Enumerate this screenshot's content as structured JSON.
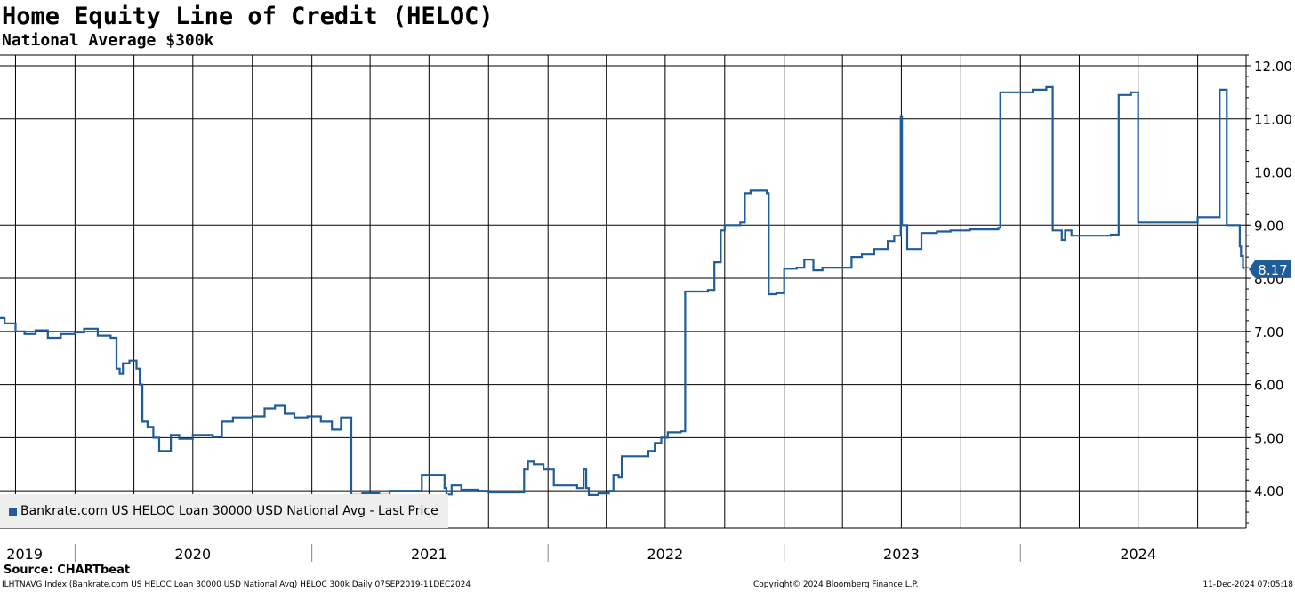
{
  "title": "Home Equity Line of Credit (HELOC)",
  "subtitle": "National Average $300k",
  "source": "Source: CHARTbeat",
  "footer": {
    "left": "ILHTNAVG Index (Bankrate.com US HELOC Loan 30000 USD National Avg) HELOC 300k  Daily 07SEP2019-11DEC2024",
    "middle": "Copyright© 2024 Bloomberg Finance L.P.",
    "right": "11-Dec-2024 07:05:18"
  },
  "colors": {
    "line": "#1f5c99",
    "grid": "#000000",
    "legend_bg": "#eeeeee"
  },
  "chart_data": {
    "type": "line",
    "title": "Home Equity Line of Credit (HELOC)",
    "subtitle": "National Average $300k",
    "x_type": "date",
    "xlim": [
      "2019-09-07",
      "2024-12-11"
    ],
    "ylim": [
      3.3,
      12.2
    ],
    "y_ticks": [
      4.0,
      5.0,
      6.0,
      7.0,
      8.0,
      9.0,
      10.0,
      11.0,
      12.0
    ],
    "y_tick_labels": [
      "4.00",
      "5.00",
      "6.00",
      "7.00",
      "8.00",
      "9.00",
      "10.00",
      "11.00",
      "12.00"
    ],
    "y_axis_position": "right",
    "grid": true,
    "x_year_labels": [
      {
        "label": "2019",
        "date": "2019-10-15"
      },
      {
        "label": "2020",
        "date": "2020-07-01"
      },
      {
        "label": "2021",
        "date": "2021-07-01"
      },
      {
        "label": "2022",
        "date": "2022-07-01"
      },
      {
        "label": "2023",
        "date": "2023-07-01"
      },
      {
        "label": "2024",
        "date": "2024-07-01"
      }
    ],
    "legend": {
      "placement": "bottom-left",
      "entries": [
        "Bankrate.com US HELOC Loan 30000 USD National Avg - Last Price"
      ]
    },
    "last_value_label": "8.17",
    "series": [
      {
        "name": "Bankrate.com US HELOC Loan 30000 USD National Avg - Last Price",
        "points": [
          [
            "2019-09-07",
            7.25
          ],
          [
            "2019-09-14",
            7.15
          ],
          [
            "2019-10-01",
            7.0
          ],
          [
            "2019-10-15",
            6.95
          ],
          [
            "2019-11-01",
            7.02
          ],
          [
            "2019-11-20",
            6.88
          ],
          [
            "2019-12-10",
            6.95
          ],
          [
            "2020-01-01",
            6.98
          ],
          [
            "2020-01-15",
            7.05
          ],
          [
            "2020-02-05",
            6.92
          ],
          [
            "2020-02-25",
            6.88
          ],
          [
            "2020-03-05",
            6.3
          ],
          [
            "2020-03-10",
            6.2
          ],
          [
            "2020-03-15",
            6.4
          ],
          [
            "2020-03-25",
            6.45
          ],
          [
            "2020-04-05",
            6.3
          ],
          [
            "2020-04-10",
            6.0
          ],
          [
            "2020-04-14",
            5.3
          ],
          [
            "2020-04-22",
            5.2
          ],
          [
            "2020-05-01",
            5.0
          ],
          [
            "2020-05-10",
            4.75
          ],
          [
            "2020-05-20",
            4.75
          ],
          [
            "2020-05-28",
            5.05
          ],
          [
            "2020-06-10",
            4.98
          ],
          [
            "2020-07-01",
            5.05
          ],
          [
            "2020-08-01",
            5.02
          ],
          [
            "2020-08-15",
            5.3
          ],
          [
            "2020-09-01",
            5.38
          ],
          [
            "2020-10-01",
            5.4
          ],
          [
            "2020-10-20",
            5.55
          ],
          [
            "2020-11-05",
            5.6
          ],
          [
            "2020-11-20",
            5.45
          ],
          [
            "2020-12-05",
            5.38
          ],
          [
            "2020-12-25",
            5.4
          ],
          [
            "2021-01-15",
            5.3
          ],
          [
            "2021-02-01",
            5.15
          ],
          [
            "2021-02-15",
            5.38
          ],
          [
            "2021-02-28",
            5.38
          ],
          [
            "2021-03-03",
            3.92
          ],
          [
            "2021-03-20",
            3.95
          ],
          [
            "2021-04-15",
            3.92
          ],
          [
            "2021-05-01",
            4.0
          ],
          [
            "2021-06-01",
            4.0
          ],
          [
            "2021-06-20",
            4.3
          ],
          [
            "2021-07-25",
            4.05
          ],
          [
            "2021-07-28",
            3.93
          ],
          [
            "2021-08-05",
            4.1
          ],
          [
            "2021-08-20",
            4.02
          ],
          [
            "2021-09-15",
            4.0
          ],
          [
            "2021-10-01",
            3.97
          ],
          [
            "2021-10-20",
            3.97
          ],
          [
            "2021-11-20",
            3.97
          ],
          [
            "2021-11-25",
            4.4
          ],
          [
            "2021-12-01",
            4.55
          ],
          [
            "2021-12-10",
            4.5
          ],
          [
            "2021-12-25",
            4.4
          ],
          [
            "2022-01-10",
            4.1
          ],
          [
            "2022-02-01",
            4.1
          ],
          [
            "2022-02-15",
            4.05
          ],
          [
            "2022-02-25",
            4.4
          ],
          [
            "2022-03-01",
            4.05
          ],
          [
            "2022-03-05",
            3.92
          ],
          [
            "2022-03-20",
            3.95
          ],
          [
            "2022-04-05",
            4.0
          ],
          [
            "2022-04-12",
            4.3
          ],
          [
            "2022-04-20",
            4.25
          ],
          [
            "2022-04-25",
            4.65
          ],
          [
            "2022-05-20",
            4.65
          ],
          [
            "2022-06-05",
            4.75
          ],
          [
            "2022-06-15",
            4.9
          ],
          [
            "2022-06-25",
            5.0
          ],
          [
            "2022-07-05",
            5.1
          ],
          [
            "2022-07-25",
            5.12
          ],
          [
            "2022-08-01",
            7.75
          ],
          [
            "2022-08-20",
            7.75
          ],
          [
            "2022-09-05",
            7.78
          ],
          [
            "2022-09-15",
            8.3
          ],
          [
            "2022-09-25",
            8.9
          ],
          [
            "2022-10-01",
            9.0
          ],
          [
            "2022-10-25",
            9.05
          ],
          [
            "2022-11-01",
            9.6
          ],
          [
            "2022-11-10",
            9.65
          ],
          [
            "2022-12-05",
            9.6
          ],
          [
            "2022-12-08",
            7.7
          ],
          [
            "2022-12-20",
            7.72
          ],
          [
            "2023-01-01",
            8.18
          ],
          [
            "2023-01-20",
            8.2
          ],
          [
            "2023-02-01",
            8.35
          ],
          [
            "2023-02-15",
            8.15
          ],
          [
            "2023-03-01",
            8.2
          ],
          [
            "2023-04-01",
            8.2
          ],
          [
            "2023-04-15",
            8.4
          ],
          [
            "2023-05-01",
            8.45
          ],
          [
            "2023-05-20",
            8.55
          ],
          [
            "2023-06-10",
            8.7
          ],
          [
            "2023-06-20",
            8.8
          ],
          [
            "2023-06-25",
            8.8
          ],
          [
            "2023-06-30",
            11.05
          ],
          [
            "2023-07-02",
            9.0
          ],
          [
            "2023-07-10",
            8.55
          ],
          [
            "2023-07-20",
            8.55
          ],
          [
            "2023-08-01",
            8.85
          ],
          [
            "2023-08-25",
            8.88
          ],
          [
            "2023-09-15",
            8.9
          ],
          [
            "2023-10-15",
            8.92
          ],
          [
            "2023-11-15",
            8.92
          ],
          [
            "2023-11-28",
            8.95
          ],
          [
            "2023-12-01",
            11.5
          ],
          [
            "2024-01-10",
            11.5
          ],
          [
            "2024-01-20",
            11.55
          ],
          [
            "2024-02-10",
            11.6
          ],
          [
            "2024-02-20",
            8.9
          ],
          [
            "2024-03-01",
            8.9
          ],
          [
            "2024-03-05",
            8.72
          ],
          [
            "2024-03-10",
            8.9
          ],
          [
            "2024-03-20",
            8.8
          ],
          [
            "2024-04-20",
            8.8
          ],
          [
            "2024-05-20",
            8.82
          ],
          [
            "2024-06-01",
            11.45
          ],
          [
            "2024-06-20",
            11.5
          ],
          [
            "2024-06-28",
            11.5
          ],
          [
            "2024-07-01",
            9.05
          ],
          [
            "2024-08-15",
            9.05
          ],
          [
            "2024-09-20",
            9.05
          ],
          [
            "2024-10-01",
            9.15
          ],
          [
            "2024-10-20",
            9.15
          ],
          [
            "2024-11-01",
            9.15
          ],
          [
            "2024-11-04",
            11.55
          ],
          [
            "2024-11-10",
            11.55
          ],
          [
            "2024-11-15",
            9.0
          ],
          [
            "2024-12-01",
            9.0
          ],
          [
            "2024-12-05",
            8.6
          ],
          [
            "2024-12-07",
            8.42
          ],
          [
            "2024-12-09",
            8.42
          ],
          [
            "2024-12-10",
            8.2
          ],
          [
            "2024-12-11",
            8.17
          ]
        ]
      }
    ]
  }
}
